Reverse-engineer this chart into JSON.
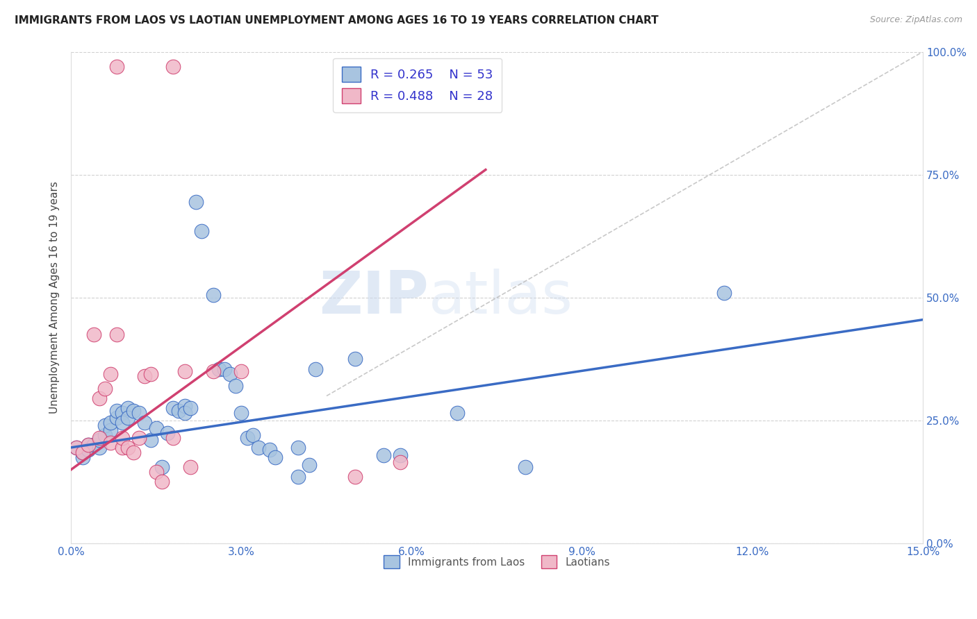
{
  "title": "IMMIGRANTS FROM LAOS VS LAOTIAN UNEMPLOYMENT AMONG AGES 16 TO 19 YEARS CORRELATION CHART",
  "source": "Source: ZipAtlas.com",
  "ylabel": "Unemployment Among Ages 16 to 19 years",
  "xlim": [
    0.0,
    0.15
  ],
  "ylim": [
    0.0,
    1.0
  ],
  "xticks": [
    0.0,
    0.03,
    0.06,
    0.09,
    0.12,
    0.15
  ],
  "xticklabels": [
    "0.0%",
    "3.0%",
    "6.0%",
    "9.0%",
    "12.0%",
    "15.0%"
  ],
  "yticks": [
    0.0,
    0.25,
    0.5,
    0.75,
    1.0
  ],
  "yticklabels": [
    "0.0%",
    "25.0%",
    "50.0%",
    "75.0%",
    "100.0%"
  ],
  "blue_color": "#a8c4e0",
  "pink_color": "#f0b8c8",
  "blue_line_color": "#3a6bc4",
  "pink_line_color": "#d04070",
  "axis_label_color": "#3a6bc4",
  "legend_text_color": "#3333cc",
  "watermark_zip": "ZIP",
  "watermark_atlas": "atlas",
  "legend_R_blue": "R = 0.265",
  "legend_N_blue": "N = 53",
  "legend_R_pink": "R = 0.488",
  "legend_N_pink": "N = 28",
  "blue_points": [
    [
      0.001,
      0.195
    ],
    [
      0.002,
      0.175
    ],
    [
      0.002,
      0.185
    ],
    [
      0.003,
      0.2
    ],
    [
      0.003,
      0.19
    ],
    [
      0.004,
      0.2
    ],
    [
      0.005,
      0.195
    ],
    [
      0.005,
      0.21
    ],
    [
      0.006,
      0.22
    ],
    [
      0.006,
      0.24
    ],
    [
      0.007,
      0.23
    ],
    [
      0.007,
      0.245
    ],
    [
      0.008,
      0.255
    ],
    [
      0.008,
      0.27
    ],
    [
      0.009,
      0.265
    ],
    [
      0.009,
      0.245
    ],
    [
      0.01,
      0.275
    ],
    [
      0.01,
      0.255
    ],
    [
      0.011,
      0.27
    ],
    [
      0.012,
      0.265
    ],
    [
      0.013,
      0.245
    ],
    [
      0.014,
      0.21
    ],
    [
      0.015,
      0.235
    ],
    [
      0.016,
      0.155
    ],
    [
      0.017,
      0.225
    ],
    [
      0.018,
      0.275
    ],
    [
      0.019,
      0.27
    ],
    [
      0.02,
      0.28
    ],
    [
      0.02,
      0.265
    ],
    [
      0.021,
      0.275
    ],
    [
      0.022,
      0.695
    ],
    [
      0.023,
      0.635
    ],
    [
      0.025,
      0.505
    ],
    [
      0.026,
      0.355
    ],
    [
      0.027,
      0.355
    ],
    [
      0.028,
      0.345
    ],
    [
      0.029,
      0.32
    ],
    [
      0.03,
      0.265
    ],
    [
      0.031,
      0.215
    ],
    [
      0.032,
      0.22
    ],
    [
      0.033,
      0.195
    ],
    [
      0.035,
      0.19
    ],
    [
      0.036,
      0.175
    ],
    [
      0.04,
      0.195
    ],
    [
      0.04,
      0.135
    ],
    [
      0.042,
      0.16
    ],
    [
      0.043,
      0.355
    ],
    [
      0.05,
      0.375
    ],
    [
      0.055,
      0.18
    ],
    [
      0.058,
      0.18
    ],
    [
      0.068,
      0.265
    ],
    [
      0.08,
      0.155
    ],
    [
      0.115,
      0.51
    ]
  ],
  "pink_points": [
    [
      0.001,
      0.195
    ],
    [
      0.002,
      0.185
    ],
    [
      0.003,
      0.2
    ],
    [
      0.004,
      0.425
    ],
    [
      0.005,
      0.215
    ],
    [
      0.005,
      0.295
    ],
    [
      0.006,
      0.315
    ],
    [
      0.007,
      0.345
    ],
    [
      0.007,
      0.205
    ],
    [
      0.008,
      0.425
    ],
    [
      0.009,
      0.195
    ],
    [
      0.009,
      0.215
    ],
    [
      0.01,
      0.195
    ],
    [
      0.011,
      0.185
    ],
    [
      0.012,
      0.215
    ],
    [
      0.013,
      0.34
    ],
    [
      0.014,
      0.345
    ],
    [
      0.015,
      0.145
    ],
    [
      0.016,
      0.125
    ],
    [
      0.018,
      0.215
    ],
    [
      0.02,
      0.35
    ],
    [
      0.021,
      0.155
    ],
    [
      0.025,
      0.35
    ],
    [
      0.03,
      0.35
    ],
    [
      0.05,
      0.135
    ],
    [
      0.058,
      0.165
    ],
    [
      0.008,
      0.97
    ],
    [
      0.018,
      0.97
    ]
  ],
  "blue_trend_x": [
    0.0,
    0.15
  ],
  "blue_trend_y": [
    0.195,
    0.455
  ],
  "pink_trend_x": [
    0.0,
    0.073
  ],
  "pink_trend_y": [
    0.15,
    0.76
  ],
  "ref_line_x": [
    0.045,
    0.15
  ],
  "ref_line_y": [
    0.3,
    1.0
  ]
}
